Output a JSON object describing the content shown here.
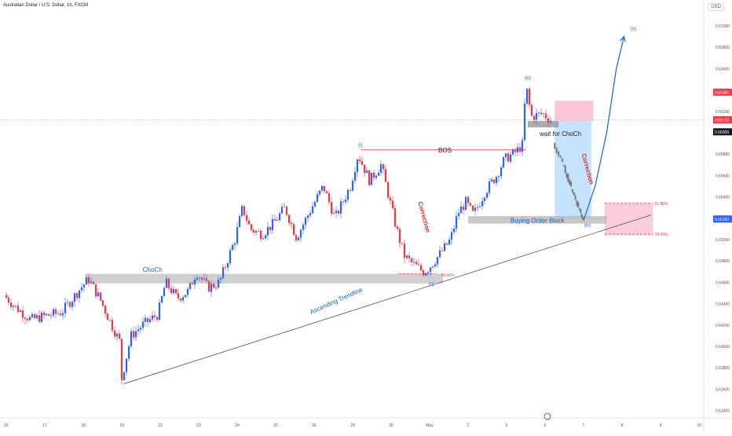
{
  "header": {
    "symbol_title": "Australian Dollar / U.S. Dollar, 1h, FXCM",
    "currency": "USD"
  },
  "colors": {
    "up": "#2962ff",
    "down": "#f23645",
    "bos_line": "#f23645",
    "annotation_blue": "#1565c0",
    "annotation_red": "#d32f2f",
    "zone_gray": "#b0b0b0",
    "zone_blue": "#bbdefb",
    "zone_red": "#f8bbd0",
    "projected_path": "#777777"
  },
  "chart_data": {
    "type": "candlestick",
    "title": "",
    "ylim": [
      0.6336,
      0.6714
    ],
    "y_ticks": [
      "0.63400",
      "0.63600",
      "0.63800",
      "0.64000",
      "0.64200",
      "0.64400",
      "0.64600",
      "0.64800",
      "0.65000",
      "0.65200",
      "0.65400",
      "0.65600",
      "0.65800",
      "0.66000",
      "0.66200",
      "0.66400",
      "0.66600",
      "0.66800",
      "0.67000"
    ],
    "x_ticks": [
      "16",
      "17",
      "18",
      "19",
      "22",
      "23",
      "24",
      "25",
      "26",
      "29",
      "30",
      "May",
      "2",
      "3",
      "6",
      "7",
      "8",
      "9",
      "10"
    ],
    "price_labels": [
      {
        "text": "0.66380",
        "value": 0.6638,
        "color": "#f23645"
      },
      {
        "text": "0.66122",
        "value": 0.66122,
        "color": "#f23645"
      },
      {
        "text": "0.66009",
        "value": 0.66009,
        "color": "#131722"
      },
      {
        "text": "0.65193",
        "value": 0.65193,
        "color": "#2962ff"
      }
    ],
    "current_price": 0.66122,
    "path": [
      [
        0,
        0.6448
      ],
      [
        0.3,
        0.6437
      ],
      [
        0.7,
        0.6425
      ],
      [
        1.0,
        0.6428
      ],
      [
        1.5,
        0.6432
      ],
      [
        2.0,
        0.6455
      ],
      [
        2.2,
        0.6463
      ],
      [
        2.5,
        0.6444
      ],
      [
        2.8,
        0.642
      ],
      [
        3.0,
        0.6405
      ],
      [
        3.05,
        0.6368
      ],
      [
        3.3,
        0.641
      ],
      [
        3.6,
        0.642
      ],
      [
        4.0,
        0.643
      ],
      [
        4.2,
        0.646
      ],
      [
        4.5,
        0.6445
      ],
      [
        4.8,
        0.6452
      ],
      [
        5.0,
        0.647
      ],
      [
        5.3,
        0.6455
      ],
      [
        5.6,
        0.646
      ],
      [
        6.0,
        0.65
      ],
      [
        6.2,
        0.653
      ],
      [
        6.4,
        0.651
      ],
      [
        6.7,
        0.6505
      ],
      [
        7.0,
        0.6515
      ],
      [
        7.3,
        0.653
      ],
      [
        7.6,
        0.6502
      ],
      [
        8.0,
        0.653
      ],
      [
        8.3,
        0.655
      ],
      [
        8.6,
        0.652
      ],
      [
        9.0,
        0.655
      ],
      [
        9.2,
        0.658
      ],
      [
        9.5,
        0.6555
      ],
      [
        9.8,
        0.657
      ],
      [
        10.0,
        0.654
      ],
      [
        10.2,
        0.651
      ],
      [
        10.4,
        0.6485
      ],
      [
        10.6,
        0.6478
      ],
      [
        10.9,
        0.647
      ],
      [
        11.0,
        0.6472
      ],
      [
        11.3,
        0.6485
      ],
      [
        11.6,
        0.65
      ],
      [
        11.8,
        0.6525
      ],
      [
        12.0,
        0.6535
      ],
      [
        12.2,
        0.6523
      ],
      [
        12.5,
        0.6545
      ],
      [
        12.8,
        0.656
      ],
      [
        13.0,
        0.6575
      ],
      [
        13.3,
        0.6582
      ],
      [
        13.5,
        0.659
      ],
      [
        13.55,
        0.6648
      ],
      [
        13.7,
        0.6615
      ],
      [
        14.0,
        0.6618
      ],
      [
        14.2,
        0.6612
      ]
    ],
    "projection": [
      [
        14.25,
        0.659
      ],
      [
        14.45,
        0.6575
      ],
      [
        14.6,
        0.656
      ],
      [
        14.75,
        0.6545
      ],
      [
        14.9,
        0.653
      ],
      [
        15.0,
        0.652
      ]
    ],
    "impulse_target": [
      [
        15.0,
        0.6518
      ],
      [
        15.3,
        0.655
      ],
      [
        15.6,
        0.66
      ],
      [
        15.85,
        0.666
      ],
      [
        16.05,
        0.669
      ]
    ],
    "trendline": [
      [
        3.05,
        0.6365
      ],
      [
        16.75,
        0.6523
      ]
    ],
    "choch_zone": {
      "x": [
        2.05,
        11.35
      ],
      "y": [
        0.6459,
        0.6468
      ]
    },
    "order_block": {
      "x": [
        12.0,
        15.6
      ],
      "y": [
        0.6515,
        0.6522
      ]
    },
    "wait_zone": {
      "x": [
        13.55,
        14.35
      ],
      "y": [
        0.6605,
        0.6611
      ]
    },
    "blue_zone": {
      "x": [
        14.25,
        15.2
      ],
      "y": [
        0.652,
        0.6611
      ]
    },
    "red_top_zone": {
      "x": [
        14.25,
        15.25
      ],
      "y": [
        0.6611,
        0.663
      ]
    },
    "red_target_zone": {
      "x": [
        15.55,
        16.8
      ],
      "y": [
        0.6505,
        0.6534
      ]
    },
    "bos": {
      "from": [
        9.2,
        0.6584
      ],
      "to": [
        13.5,
        0.6584
      ]
    },
    "fib_50": {
      "from": [
        10.2,
        0.6468
      ],
      "to": [
        11.15,
        0.6468
      ]
    },
    "annotations": {
      "wave_i": "(i)",
      "wave_ii": "(ii)",
      "wave_iii": "(iii)",
      "wave_iv": "(iv)",
      "wave_v": "(v)",
      "choch": "ChoCh",
      "bos": "BOS",
      "correction_1": "Correction",
      "correction_2": "Correction",
      "ascending_trendline": "Ascending Trendline",
      "buying_order_block": "Buying Order Block",
      "wait_for_choch": "wait for ChoCh",
      "fib_50": "50.00%",
      "fib_618": "61.80%",
      "fib_786": "78.60%"
    }
  }
}
